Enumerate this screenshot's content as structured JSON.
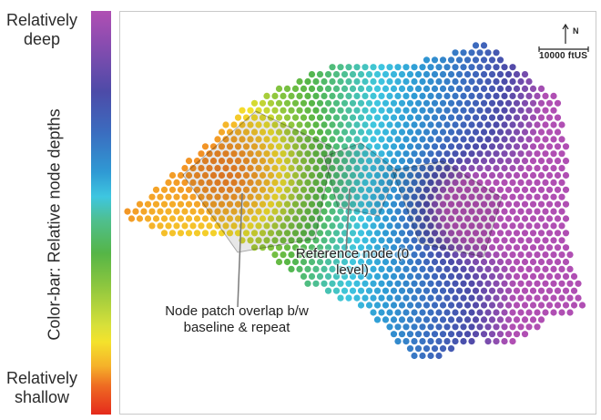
{
  "colorbar": {
    "top_label": "Relatively deep",
    "bottom_label": "Relatively shallow",
    "title": "Color-bar: Relative node depths",
    "colors": [
      "#b04fb3",
      "#4d4ba8",
      "#2f9ad4",
      "#3ec6e0",
      "#55b547",
      "#d8e03a",
      "#f5b12a",
      "#e52a1c"
    ]
  },
  "map": {
    "scale_label": "10000 ftUS",
    "north_label": "N",
    "annotations": {
      "reference_node": "Reference node (0 level)",
      "overlap": "Node patch overlap b/w baseline & repeat"
    }
  }
}
